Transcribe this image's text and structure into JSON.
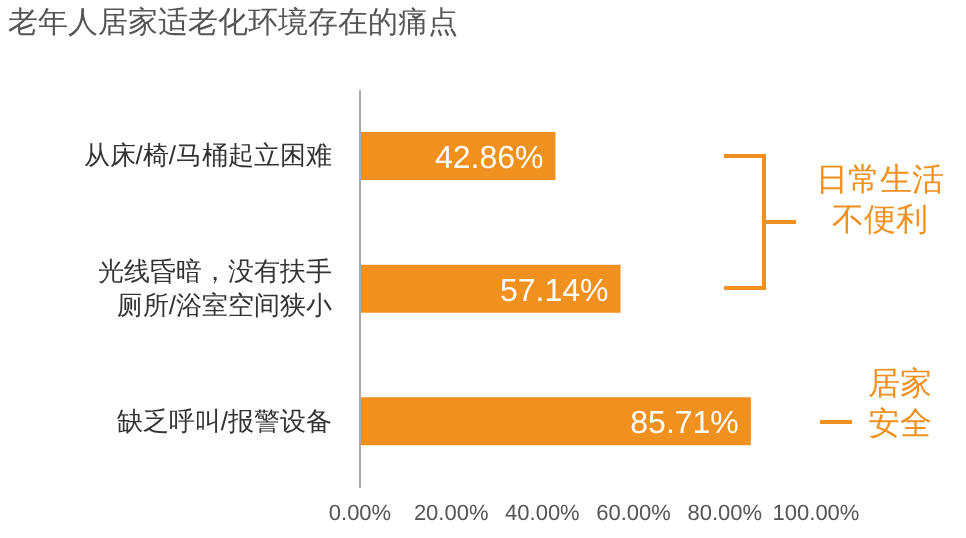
{
  "chart_data": {
    "type": "bar",
    "orientation": "horizontal",
    "title": "老年人居家适老化环境存在的痛点",
    "categories": [
      "从床/椅/马桶起立困难",
      "光线昏暗，没有扶手厕所/浴室空间狭小",
      "缺乏呼叫/报警设备"
    ],
    "values": [
      42.86,
      57.14,
      85.71
    ],
    "value_labels": [
      "42.86%",
      "57.14%",
      "85.71%"
    ],
    "color": "#f0901e",
    "xlim": [
      0,
      100
    ],
    "xticks": [
      {
        "value": 0,
        "label": "0.00%"
      },
      {
        "value": 20,
        "label": "20.00%"
      },
      {
        "value": 40,
        "label": "40.00%"
      },
      {
        "value": 60,
        "label": "60.00%"
      },
      {
        "value": 80,
        "label": "80.00%"
      },
      {
        "value": 100,
        "label": "100.00%"
      }
    ],
    "annotations": [
      "日常生活不便利",
      "居家安全"
    ]
  }
}
